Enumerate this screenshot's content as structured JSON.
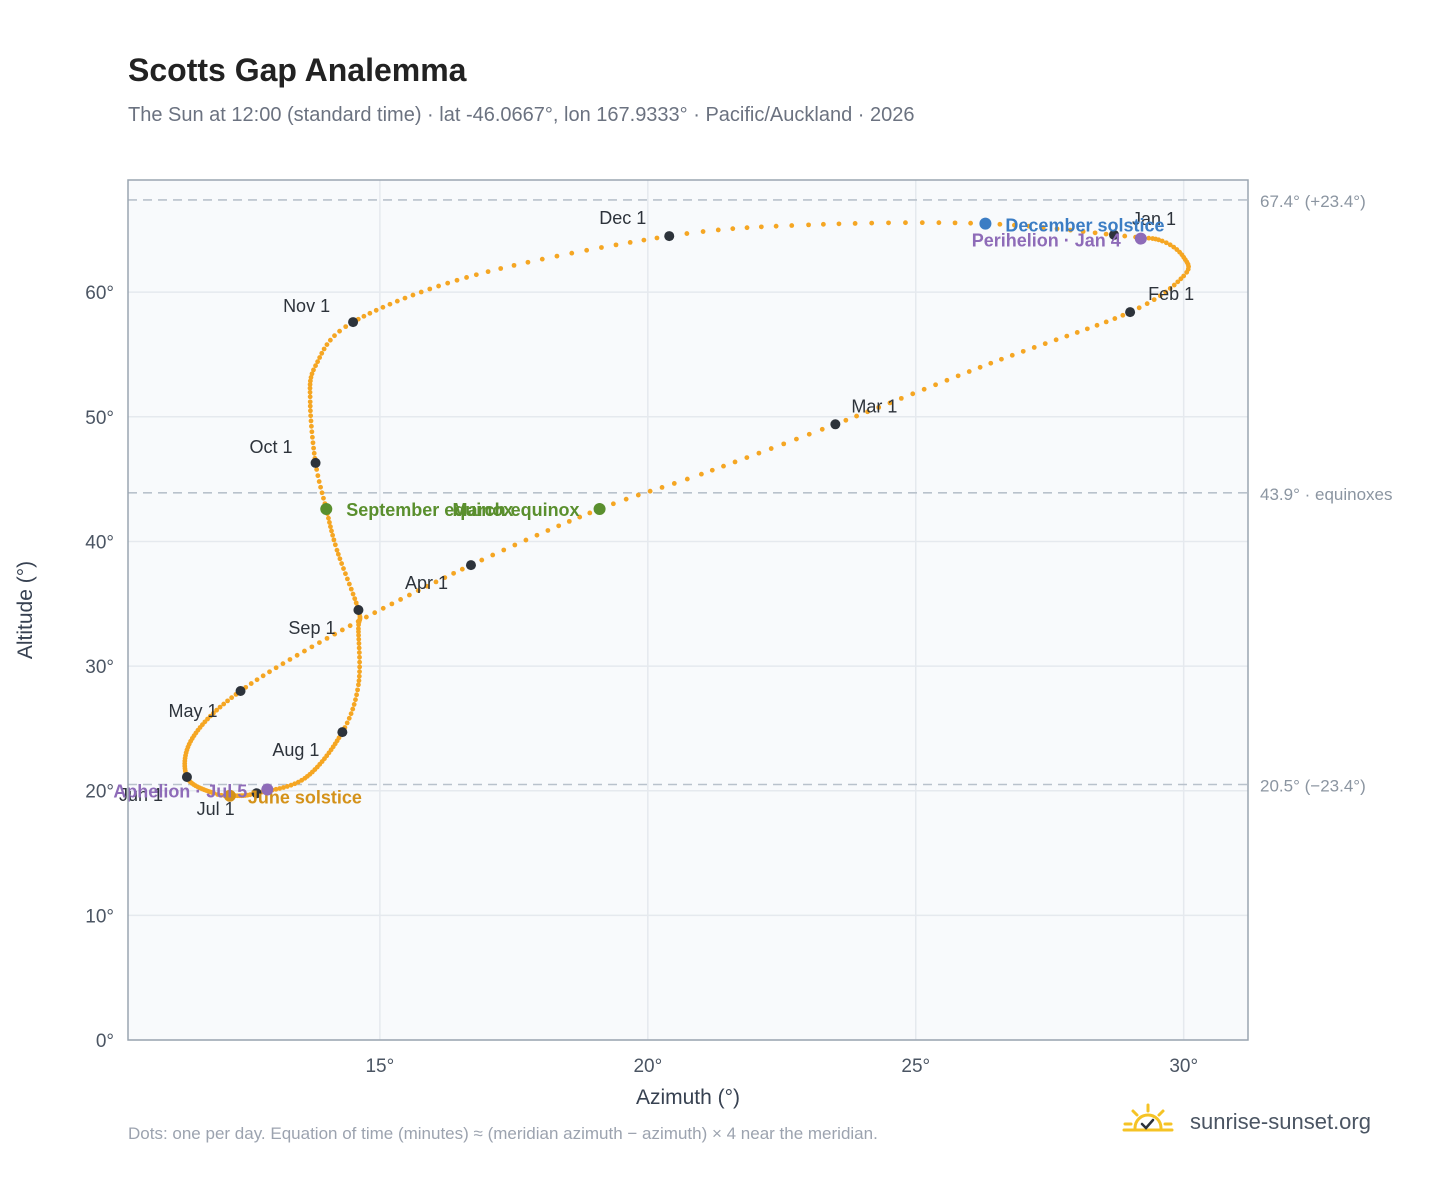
{
  "header": {
    "title": "Scotts Gap Analemma",
    "subtitle": "The Sun at 12:00 (standard time) · lat -46.0667°, lon 167.9333° · Pacific/Auckland · 2026"
  },
  "footer": {
    "note": "Dots: one per day. Equation of time (minutes) ≈ (meridian azimuth − azimuth) × 4 near the meridian.",
    "brand": "sunrise-sunset.org",
    "brand_icon": "sun-check-icon"
  },
  "colors": {
    "curve": "#f5a623",
    "month_marker": "#2d333b",
    "solstice_december": "#3b7dc4",
    "solstice_june": "#d4921a",
    "equinox": "#5a8f2e",
    "apsis": "#8e6bb8",
    "reference_line": "#b9c2cc",
    "grid": "#e5e9ee",
    "plot_background": "#f8fafc"
  },
  "chart_data": {
    "type": "scatter",
    "xlabel": "Azimuth (°)",
    "ylabel": "Altitude (°)",
    "xlim": [
      10.3,
      31.2
    ],
    "ylim": [
      0,
      69
    ],
    "x_ticks": [
      15,
      20,
      25,
      30
    ],
    "y_ticks": [
      0,
      10,
      20,
      30,
      40,
      50,
      60
    ],
    "x_tick_suffix": "°",
    "y_tick_suffix": "°",
    "grid": true,
    "reference_lines": [
      {
        "y": 67.4,
        "label": "67.4° (+23.4°)"
      },
      {
        "y": 43.9,
        "label": "43.9° · equinoxes"
      },
      {
        "y": 20.5,
        "label": "20.5° (−23.4°)"
      }
    ],
    "analemma_anchors": [
      {
        "day": 0,
        "x": 28.9,
        "y": 64.5
      },
      {
        "day": 7,
        "x": 29.6,
        "y": 64.1
      },
      {
        "day": 14,
        "x": 30.0,
        "y": 62.8
      },
      {
        "day": 21,
        "x": 30.0,
        "y": 61.3
      },
      {
        "day": 31,
        "x": 29.0,
        "y": 58.4
      },
      {
        "day": 45,
        "x": 26.4,
        "y": 54.3
      },
      {
        "day": 59,
        "x": 23.5,
        "y": 49.4
      },
      {
        "day": 70,
        "x": 21.0,
        "y": 45.4
      },
      {
        "day": 78,
        "x": 19.1,
        "y": 42.6
      },
      {
        "day": 90,
        "x": 16.7,
        "y": 38.1
      },
      {
        "day": 105,
        "x": 14.3,
        "y": 32.9
      },
      {
        "day": 120,
        "x": 12.4,
        "y": 28.0
      },
      {
        "day": 136,
        "x": 11.5,
        "y": 24.2
      },
      {
        "day": 151,
        "x": 11.4,
        "y": 21.1
      },
      {
        "day": 166,
        "x": 11.9,
        "y": 19.8
      },
      {
        "day": 172,
        "x": 12.3,
        "y": 19.6
      },
      {
        "day": 181,
        "x": 12.7,
        "y": 19.8
      },
      {
        "day": 195,
        "x": 13.6,
        "y": 21.0
      },
      {
        "day": 212,
        "x": 14.3,
        "y": 24.7
      },
      {
        "day": 222,
        "x": 14.6,
        "y": 28.5
      },
      {
        "day": 235,
        "x": 14.6,
        "y": 33.0
      },
      {
        "day": 243,
        "x": 14.6,
        "y": 34.5
      },
      {
        "day": 256,
        "x": 14.2,
        "y": 39.3
      },
      {
        "day": 265,
        "x": 14.0,
        "y": 42.6
      },
      {
        "day": 273,
        "x": 13.8,
        "y": 46.3
      },
      {
        "day": 285,
        "x": 13.7,
        "y": 51.2
      },
      {
        "day": 294,
        "x": 13.8,
        "y": 54.1
      },
      {
        "day": 304,
        "x": 14.5,
        "y": 57.6
      },
      {
        "day": 320,
        "x": 16.8,
        "y": 61.4
      },
      {
        "day": 334,
        "x": 20.4,
        "y": 64.5
      },
      {
        "day": 343,
        "x": 23.0,
        "y": 65.4
      },
      {
        "day": 354,
        "x": 26.3,
        "y": 65.5
      },
      {
        "day": 365,
        "x": 28.9,
        "y": 64.5
      }
    ],
    "month_markers": [
      {
        "label": "Jan 1",
        "x": 28.7,
        "y": 64.6
      },
      {
        "label": "Feb 1",
        "x": 29.0,
        "y": 58.4
      },
      {
        "label": "Mar 1",
        "x": 23.5,
        "y": 49.4
      },
      {
        "label": "Apr 1",
        "x": 16.7,
        "y": 38.1
      },
      {
        "label": "May 1",
        "x": 12.4,
        "y": 28.0
      },
      {
        "label": "Jun 1",
        "x": 11.4,
        "y": 21.1
      },
      {
        "label": "Jul 1",
        "x": 12.7,
        "y": 19.8
      },
      {
        "label": "Aug 1",
        "x": 14.3,
        "y": 24.7
      },
      {
        "label": "Sep 1",
        "x": 14.6,
        "y": 34.5
      },
      {
        "label": "Oct 1",
        "x": 13.8,
        "y": 46.3
      },
      {
        "label": "Nov 1",
        "x": 14.5,
        "y": 57.6
      },
      {
        "label": "Dec 1",
        "x": 20.4,
        "y": 64.5
      }
    ],
    "events": [
      {
        "label": "December solstice",
        "x": 26.3,
        "y": 65.5,
        "kind": "solstice_december"
      },
      {
        "label": "Perihelion · Jan 4",
        "x": 29.2,
        "y": 64.3,
        "kind": "apsis"
      },
      {
        "label": "September equinox",
        "x": 14.0,
        "y": 42.6,
        "kind": "equinox"
      },
      {
        "label": "March equinox",
        "x": 19.1,
        "y": 42.6,
        "kind": "equinox"
      },
      {
        "label": "June solstice",
        "x": 12.2,
        "y": 19.6,
        "kind": "solstice_june"
      },
      {
        "label": "Aphelion · Jul 5",
        "x": 12.9,
        "y": 20.1,
        "kind": "apsis"
      }
    ]
  }
}
